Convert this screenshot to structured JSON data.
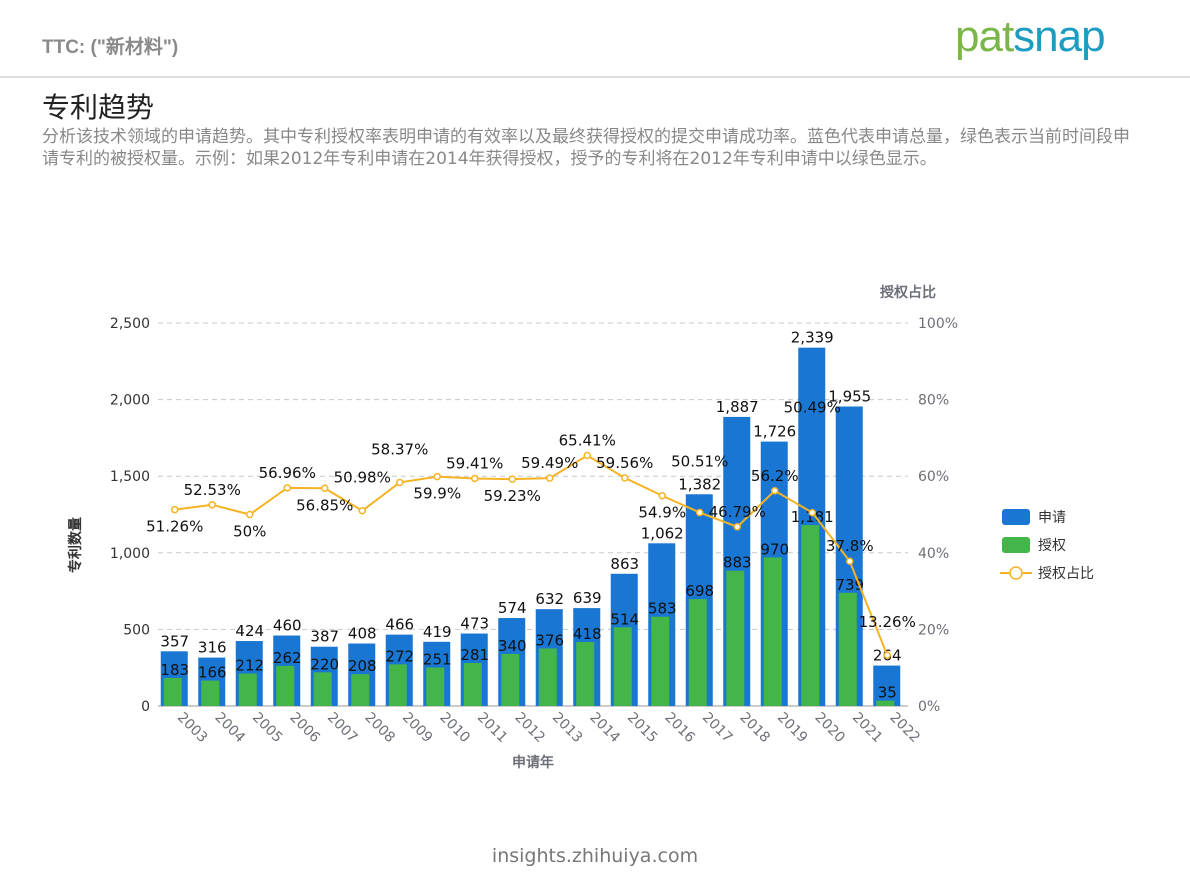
{
  "header": {
    "title": "TTC: (\"新材料\")",
    "logo": "patsnap"
  },
  "section": {
    "title": "专利趋势",
    "description": "分析该技术领域的申请趋势。其中专利授权率表明申请的有效率以及最终获得授权的提交申请成功率。蓝色代表申请总量，绿色表示当前时间段申请专利的被授权量。示例：如果2012年专利申请在2014年获得授权，授予的专利将在2012年专利申请中以绿色显示。"
  },
  "footer": {
    "text": "insights.zhihuiya.com"
  },
  "chart_data": {
    "type": "bar",
    "xlabel": "申请年",
    "ylabel": "专利数量",
    "y2label": "授权占比",
    "ylim": [
      0,
      2500
    ],
    "y2lim": [
      0,
      100
    ],
    "yticks": [
      "0",
      "500",
      "1,000",
      "1,500",
      "2,000",
      "2,500"
    ],
    "y2ticks": [
      "0%",
      "20%",
      "40%",
      "60%",
      "80%",
      "100%"
    ],
    "grid": true,
    "legend_position": "right",
    "categories": [
      "2003",
      "2004",
      "2005",
      "2006",
      "2007",
      "2008",
      "2009",
      "2010",
      "2011",
      "2012",
      "2013",
      "2014",
      "2015",
      "2016",
      "2017",
      "2018",
      "2019",
      "2020",
      "2021",
      "2022"
    ],
    "series": [
      {
        "name": "申请",
        "type": "bar",
        "color": "#1976d2",
        "values": [
          357,
          316,
          424,
          460,
          387,
          408,
          466,
          419,
          473,
          574,
          632,
          639,
          863,
          1062,
          1382,
          1887,
          1726,
          2339,
          1955,
          264
        ],
        "labels": [
          "357",
          "316",
          "424",
          "460",
          "387",
          "408",
          "466",
          "419",
          "473",
          "574",
          "632",
          "639",
          "863",
          "1,062",
          "1,382",
          "1,887",
          "1,726",
          "2,339",
          "1,955",
          "264"
        ]
      },
      {
        "name": "授权",
        "type": "bar",
        "color": "#43b549",
        "values": [
          183,
          166,
          212,
          262,
          220,
          208,
          272,
          251,
          281,
          340,
          376,
          418,
          514,
          583,
          698,
          883,
          970,
          1181,
          739,
          35
        ],
        "labels": [
          "183",
          "166",
          "212",
          "262",
          "220",
          "208",
          "272",
          "251",
          "281",
          "340",
          "376",
          "418",
          "514",
          "583",
          "698",
          "883",
          "970",
          "1,181",
          "739",
          "35"
        ]
      },
      {
        "name": "授权占比",
        "type": "line",
        "color": "#f5b324",
        "values": [
          51.26,
          52.53,
          50,
          56.96,
          56.85,
          50.98,
          58.37,
          59.9,
          59.41,
          59.23,
          59.49,
          65.41,
          59.56,
          54.9,
          50.51,
          46.79,
          56.2,
          50.49,
          37.8,
          13.26
        ],
        "labels": [
          "51.26%",
          "52.53%",
          "50%",
          "56.96%",
          "56.85%",
          "50.98%",
          "58.37%",
          "59.9%",
          "59.41%",
          "59.23%",
          "59.49%",
          "65.41%",
          "59.56%",
          "54.9%",
          "50.51%",
          "46.79%",
          "56.2%",
          "50.49%",
          "37.8%",
          "13.26%"
        ]
      }
    ]
  }
}
